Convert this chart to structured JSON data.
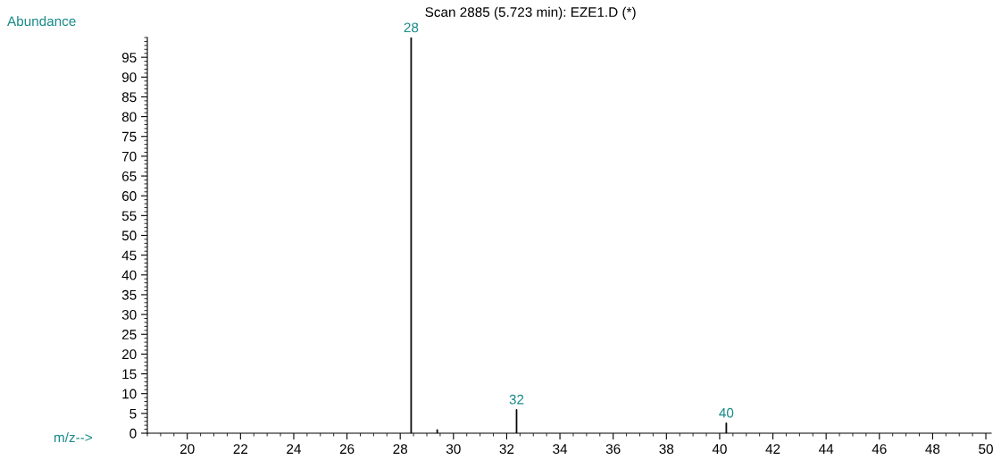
{
  "chart_data": {
    "type": "bar",
    "title": "Scan 2885 (5.723 min): EZE1.D (*)",
    "xlabel": "m/z-->",
    "ylabel": "Abundance",
    "x": [
      28.41,
      29.39,
      32.37,
      40.25
    ],
    "values": [
      100,
      0.9,
      6,
      2.6
    ],
    "color": "#000000",
    "xlim": [
      18.5,
      50.2
    ],
    "xticks": [
      20,
      22,
      24,
      26,
      28,
      30,
      32,
      34,
      36,
      38,
      40,
      42,
      44,
      46,
      48,
      50
    ],
    "ylim": [
      0,
      100
    ],
    "yticks": [
      0,
      5,
      10,
      15,
      20,
      25,
      30,
      35,
      40,
      45,
      50,
      55,
      60,
      65,
      70,
      75,
      80,
      85,
      90,
      95
    ],
    "grid": false,
    "legend": false,
    "annotations": [
      {
        "text": "28",
        "x": 28.41,
        "y": 100
      },
      {
        "text": "32",
        "x": 32.37,
        "y": 6
      },
      {
        "text": "40",
        "x": 40.25,
        "y": 2.6
      }
    ]
  }
}
